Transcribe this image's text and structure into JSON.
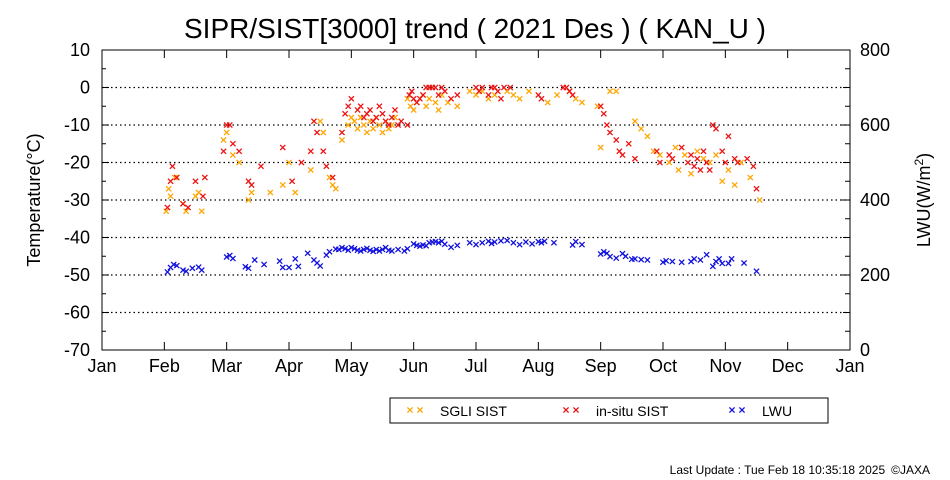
{
  "chart_data": {
    "type": "scatter",
    "title": "SIPR/SIST[3000] trend ( 2021 Des ) ( KAN_U )",
    "xlabel": "",
    "ylabel": "Temperature(°C)",
    "y2label_main": "LWU(W/m",
    "y2label_sup": "2",
    "y2label_end": ")",
    "ylim": [
      -70,
      10
    ],
    "y2lim": [
      0,
      800
    ],
    "yticks": [
      10,
      0,
      -10,
      -20,
      -30,
      -40,
      -50,
      -60,
      -70
    ],
    "y2ticks": [
      800,
      600,
      400,
      200,
      0
    ],
    "y2tick_labels": [
      "800",
      "600",
      "400",
      "200",
      "0"
    ],
    "xticks": [
      "Jan",
      "Feb",
      "Mar",
      "Apr",
      "May",
      "Jun",
      "Jul",
      "Aug",
      "Sep",
      "Oct",
      "Nov",
      "Dec",
      "Jan"
    ],
    "grid": "horizontal-dotted",
    "legend_position": "bottom",
    "series": [
      {
        "name": "SGLI SIST",
        "color": "#ffa500",
        "axis": "left",
        "points": [
          [
            1.03,
            -33
          ],
          [
            1.07,
            -27
          ],
          [
            1.1,
            -29
          ],
          [
            1.17,
            -24
          ],
          [
            1.3,
            -31
          ],
          [
            1.35,
            -33
          ],
          [
            1.5,
            -29
          ],
          [
            1.55,
            -28
          ],
          [
            1.6,
            -33
          ],
          [
            1.95,
            -14
          ],
          [
            2.0,
            -12
          ],
          [
            2.1,
            -18
          ],
          [
            2.2,
            -20
          ],
          [
            2.35,
            -30
          ],
          [
            2.4,
            -28
          ],
          [
            2.7,
            -28
          ],
          [
            2.9,
            -26
          ],
          [
            3.0,
            -20
          ],
          [
            3.1,
            -28
          ],
          [
            3.35,
            -22
          ],
          [
            3.5,
            -9
          ],
          [
            3.55,
            -12
          ],
          [
            3.65,
            -24
          ],
          [
            3.7,
            -26
          ],
          [
            3.75,
            -27
          ],
          [
            3.85,
            -14
          ],
          [
            3.95,
            -10
          ],
          [
            4.0,
            -8
          ],
          [
            4.05,
            -9
          ],
          [
            4.1,
            -11
          ],
          [
            4.15,
            -8
          ],
          [
            4.2,
            -10
          ],
          [
            4.25,
            -12
          ],
          [
            4.3,
            -9
          ],
          [
            4.35,
            -11
          ],
          [
            4.4,
            -8
          ],
          [
            4.45,
            -10
          ],
          [
            4.5,
            -12
          ],
          [
            4.55,
            -9
          ],
          [
            4.6,
            -11
          ],
          [
            4.65,
            -10
          ],
          [
            4.7,
            -8
          ],
          [
            4.9,
            -3
          ],
          [
            4.95,
            -5
          ],
          [
            5.0,
            -6
          ],
          [
            5.05,
            -4
          ],
          [
            5.15,
            -2
          ],
          [
            5.2,
            -5
          ],
          [
            5.25,
            -3
          ],
          [
            5.35,
            -4
          ],
          [
            5.4,
            -6
          ],
          [
            5.45,
            -2
          ],
          [
            5.55,
            -4
          ],
          [
            5.7,
            -5
          ],
          [
            5.9,
            -1
          ],
          [
            6.0,
            -2
          ],
          [
            6.1,
            -1
          ],
          [
            6.2,
            -3
          ],
          [
            6.3,
            -2
          ],
          [
            6.5,
            -1
          ],
          [
            6.6,
            -2
          ],
          [
            6.7,
            -3
          ],
          [
            6.85,
            -1
          ],
          [
            7.15,
            -4
          ],
          [
            7.3,
            -2
          ],
          [
            7.5,
            -1
          ],
          [
            7.6,
            -3
          ],
          [
            7.7,
            -4
          ],
          [
            7.95,
            -5
          ],
          [
            8.0,
            -16
          ],
          [
            8.15,
            -1
          ],
          [
            8.25,
            -1
          ],
          [
            8.55,
            -9
          ],
          [
            8.65,
            -11
          ],
          [
            8.75,
            -13
          ],
          [
            8.85,
            -17
          ],
          [
            8.95,
            -18
          ],
          [
            9.1,
            -20
          ],
          [
            9.2,
            -16
          ],
          [
            9.25,
            -22
          ],
          [
            9.35,
            -18
          ],
          [
            9.45,
            -23
          ],
          [
            9.55,
            -17
          ],
          [
            9.65,
            -19
          ],
          [
            9.75,
            -20
          ],
          [
            9.85,
            -18
          ],
          [
            9.95,
            -25
          ],
          [
            10.05,
            -22
          ],
          [
            10.15,
            -26
          ],
          [
            10.25,
            -20
          ],
          [
            10.4,
            -24
          ],
          [
            10.55,
            -30
          ]
        ]
      },
      {
        "name": "in-situ SIST",
        "color": "#ee1111",
        "axis": "left",
        "points": [
          [
            1.05,
            -32
          ],
          [
            1.1,
            -25
          ],
          [
            1.13,
            -21
          ],
          [
            1.2,
            -24
          ],
          [
            1.3,
            -31
          ],
          [
            1.38,
            -32
          ],
          [
            1.5,
            -25
          ],
          [
            1.62,
            -29
          ],
          [
            1.65,
            -24
          ],
          [
            1.95,
            -17
          ],
          [
            2.0,
            -10
          ],
          [
            2.05,
            -10
          ],
          [
            2.1,
            -15
          ],
          [
            2.2,
            -17
          ],
          [
            2.35,
            -25
          ],
          [
            2.4,
            -26
          ],
          [
            2.55,
            -21
          ],
          [
            2.9,
            -16
          ],
          [
            3.05,
            -25
          ],
          [
            3.2,
            -20
          ],
          [
            3.35,
            -17
          ],
          [
            3.4,
            -9
          ],
          [
            3.45,
            -12
          ],
          [
            3.55,
            -17
          ],
          [
            3.6,
            -21
          ],
          [
            3.7,
            -24
          ],
          [
            3.85,
            -12
          ],
          [
            3.9,
            -7
          ],
          [
            3.95,
            -5
          ],
          [
            4.0,
            -3
          ],
          [
            4.1,
            -6
          ],
          [
            4.15,
            -5
          ],
          [
            4.2,
            -8
          ],
          [
            4.25,
            -7
          ],
          [
            4.3,
            -6
          ],
          [
            4.35,
            -9
          ],
          [
            4.4,
            -8
          ],
          [
            4.45,
            -5
          ],
          [
            4.5,
            -7
          ],
          [
            4.55,
            -9
          ],
          [
            4.6,
            -10
          ],
          [
            4.65,
            -8
          ],
          [
            4.7,
            -6
          ],
          [
            4.75,
            -10
          ],
          [
            4.8,
            -9
          ],
          [
            4.9,
            -10
          ],
          [
            4.93,
            -2
          ],
          [
            4.97,
            -1
          ],
          [
            5.0,
            -3
          ],
          [
            5.05,
            -4
          ],
          [
            5.1,
            -3
          ],
          [
            5.15,
            -2
          ],
          [
            5.2,
            0
          ],
          [
            5.25,
            0
          ],
          [
            5.3,
            0
          ],
          [
            5.35,
            0
          ],
          [
            5.4,
            -2
          ],
          [
            5.45,
            0
          ],
          [
            5.5,
            -1
          ],
          [
            5.6,
            -3
          ],
          [
            5.7,
            -2
          ],
          [
            6.0,
            0
          ],
          [
            6.05,
            -1
          ],
          [
            6.1,
            0
          ],
          [
            6.2,
            -2
          ],
          [
            6.25,
            0
          ],
          [
            6.3,
            0
          ],
          [
            6.35,
            -1
          ],
          [
            6.4,
            -3
          ],
          [
            6.45,
            0
          ],
          [
            6.55,
            0
          ],
          [
            7.0,
            -2
          ],
          [
            7.05,
            -3
          ],
          [
            7.4,
            0
          ],
          [
            7.45,
            0
          ],
          [
            7.5,
            -1
          ],
          [
            7.55,
            -2
          ],
          [
            8.0,
            -5
          ],
          [
            8.05,
            -7
          ],
          [
            8.1,
            -10
          ],
          [
            8.15,
            -12
          ],
          [
            8.25,
            -14
          ],
          [
            8.3,
            -17
          ],
          [
            8.35,
            -18
          ],
          [
            8.45,
            -15
          ],
          [
            8.55,
            -19
          ],
          [
            8.9,
            -17
          ],
          [
            8.95,
            -20
          ],
          [
            9.1,
            -18
          ],
          [
            9.15,
            -19
          ],
          [
            9.3,
            -16
          ],
          [
            9.4,
            -20
          ],
          [
            9.45,
            -18
          ],
          [
            9.5,
            -21
          ],
          [
            9.55,
            -19
          ],
          [
            9.6,
            -22
          ],
          [
            9.65,
            -17
          ],
          [
            9.7,
            -20
          ],
          [
            9.75,
            -22
          ],
          [
            9.8,
            -10
          ],
          [
            9.85,
            -11
          ],
          [
            9.95,
            -17
          ],
          [
            10.0,
            -20
          ],
          [
            10.05,
            -13
          ],
          [
            10.15,
            -19
          ],
          [
            10.2,
            -20
          ],
          [
            10.35,
            -19
          ],
          [
            10.45,
            -21
          ],
          [
            10.5,
            -27
          ]
        ]
      },
      {
        "name": "LWU",
        "color": "#1111dd",
        "axis": "right",
        "points": [
          [
            1.05,
            208
          ],
          [
            1.1,
            220
          ],
          [
            1.15,
            228
          ],
          [
            1.2,
            225
          ],
          [
            1.3,
            213
          ],
          [
            1.35,
            210
          ],
          [
            1.45,
            218
          ],
          [
            1.55,
            221
          ],
          [
            1.6,
            213
          ],
          [
            2.0,
            248
          ],
          [
            2.05,
            252
          ],
          [
            2.1,
            244
          ],
          [
            2.3,
            222
          ],
          [
            2.35,
            218
          ],
          [
            2.45,
            240
          ],
          [
            2.6,
            228
          ],
          [
            2.85,
            237
          ],
          [
            2.9,
            220
          ],
          [
            3.0,
            220
          ],
          [
            3.1,
            243
          ],
          [
            3.15,
            223
          ],
          [
            3.3,
            258
          ],
          [
            3.4,
            240
          ],
          [
            3.45,
            232
          ],
          [
            3.5,
            224
          ],
          [
            3.6,
            253
          ],
          [
            3.65,
            262
          ],
          [
            3.75,
            269
          ],
          [
            3.8,
            268
          ],
          [
            3.85,
            273
          ],
          [
            3.9,
            270
          ],
          [
            3.95,
            266
          ],
          [
            4.0,
            273
          ],
          [
            4.05,
            270
          ],
          [
            4.1,
            266
          ],
          [
            4.15,
            264
          ],
          [
            4.2,
            268
          ],
          [
            4.25,
            271
          ],
          [
            4.3,
            266
          ],
          [
            4.35,
            263
          ],
          [
            4.4,
            268
          ],
          [
            4.45,
            264
          ],
          [
            4.5,
            268
          ],
          [
            4.55,
            273
          ],
          [
            4.6,
            266
          ],
          [
            4.65,
            264
          ],
          [
            4.75,
            268
          ],
          [
            4.85,
            264
          ],
          [
            4.9,
            270
          ],
          [
            5.0,
            283
          ],
          [
            5.05,
            279
          ],
          [
            5.1,
            277
          ],
          [
            5.15,
            280
          ],
          [
            5.2,
            278
          ],
          [
            5.25,
            286
          ],
          [
            5.3,
            288
          ],
          [
            5.35,
            289
          ],
          [
            5.4,
            286
          ],
          [
            5.45,
            290
          ],
          [
            5.5,
            282
          ],
          [
            5.6,
            274
          ],
          [
            5.7,
            279
          ],
          [
            5.9,
            286
          ],
          [
            6.0,
            281
          ],
          [
            6.1,
            286
          ],
          [
            6.2,
            290
          ],
          [
            6.25,
            284
          ],
          [
            6.3,
            288
          ],
          [
            6.4,
            291
          ],
          [
            6.5,
            292
          ],
          [
            6.6,
            286
          ],
          [
            6.7,
            281
          ],
          [
            6.8,
            288
          ],
          [
            6.9,
            283
          ],
          [
            7.0,
            289
          ],
          [
            7.05,
            286
          ],
          [
            7.1,
            290
          ],
          [
            7.25,
            286
          ],
          [
            7.55,
            280
          ],
          [
            7.6,
            289
          ],
          [
            7.7,
            281
          ],
          [
            8.0,
            256
          ],
          [
            8.05,
            262
          ],
          [
            8.1,
            258
          ],
          [
            8.15,
            249
          ],
          [
            8.25,
            245
          ],
          [
            8.35,
            257
          ],
          [
            8.4,
            250
          ],
          [
            8.5,
            242
          ],
          [
            8.55,
            243
          ],
          [
            8.65,
            241
          ],
          [
            8.75,
            240
          ],
          [
            9.0,
            234
          ],
          [
            9.05,
            238
          ],
          [
            9.15,
            236
          ],
          [
            9.3,
            234
          ],
          [
            9.45,
            236
          ],
          [
            9.5,
            243
          ],
          [
            9.6,
            240
          ],
          [
            9.7,
            254
          ],
          [
            9.8,
            223
          ],
          [
            9.85,
            236
          ],
          [
            9.9,
            243
          ],
          [
            9.95,
            231
          ],
          [
            10.05,
            231
          ],
          [
            10.1,
            243
          ],
          [
            10.3,
            232
          ],
          [
            10.5,
            210
          ]
        ]
      }
    ]
  },
  "footer": {
    "last_update": "Last Update : Tue Feb 18 10:35:18 2025",
    "copyright": "©JAXA"
  }
}
